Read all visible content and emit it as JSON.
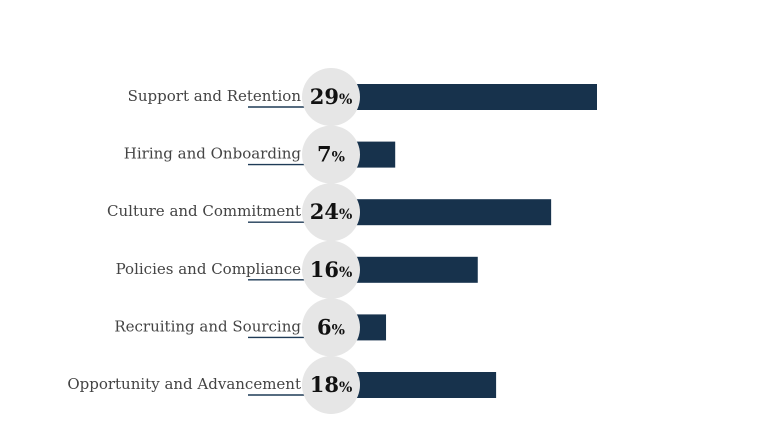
{
  "chart_data": {
    "type": "bar",
    "orientation": "horizontal",
    "title": "",
    "xlabel": "",
    "ylabel": "",
    "value_suffix": "%",
    "categories": [
      "Support and Retention",
      "Hiring and Onboarding",
      "Culture and Commitment",
      "Policies and Compliance",
      "Recruiting and Sourcing",
      "Opportunity and Advancement"
    ],
    "values": [
      29,
      7,
      24,
      16,
      6,
      18
    ],
    "xlim": [
      0,
      29
    ],
    "grid": false,
    "legend": "none"
  },
  "colors": {
    "bar": "#17324c",
    "circle": "#e6e6e6",
    "label_text": "#444444",
    "value_text": "#111111",
    "underline": "#1f3b57"
  }
}
